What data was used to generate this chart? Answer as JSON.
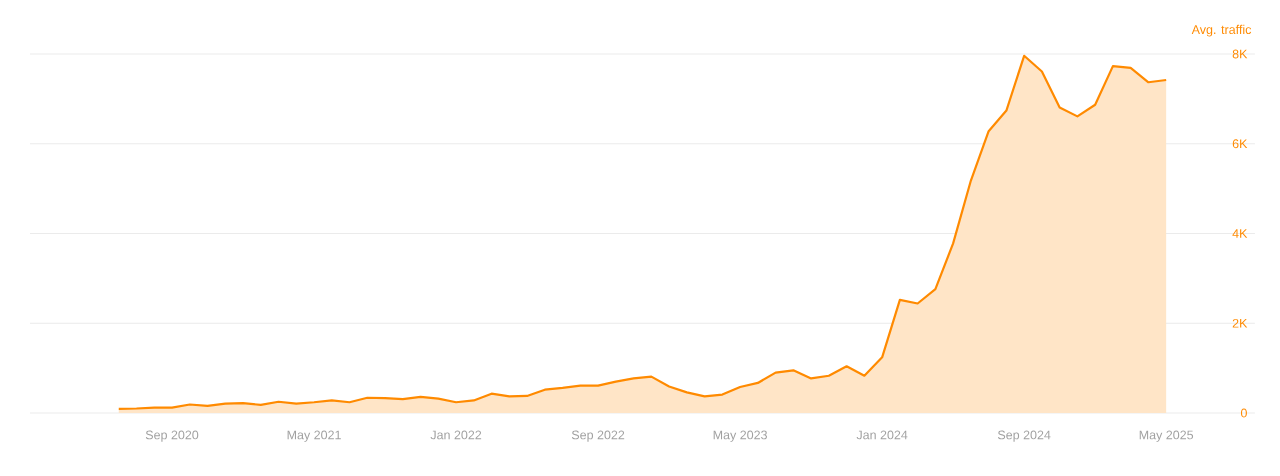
{
  "chart_data": {
    "type": "area",
    "ylabel": "Avg. traffic",
    "x": [
      "2020-06",
      "2020-07",
      "2020-08",
      "2020-09",
      "2020-10",
      "2020-11",
      "2020-12",
      "2021-01",
      "2021-02",
      "2021-03",
      "2021-04",
      "2021-05",
      "2021-06",
      "2021-07",
      "2021-08",
      "2021-09",
      "2021-10",
      "2021-11",
      "2021-12",
      "2022-01",
      "2022-02",
      "2022-03",
      "2022-04",
      "2022-05",
      "2022-06",
      "2022-07",
      "2022-08",
      "2022-09",
      "2022-10",
      "2022-11",
      "2022-12",
      "2023-01",
      "2023-02",
      "2023-03",
      "2023-04",
      "2023-05",
      "2023-06",
      "2023-07",
      "2023-08",
      "2023-09",
      "2023-10",
      "2023-11",
      "2023-12",
      "2024-01",
      "2024-02",
      "2024-03",
      "2024-04",
      "2024-05",
      "2024-06",
      "2024-07",
      "2024-08",
      "2024-09",
      "2024-10",
      "2024-11",
      "2024-12",
      "2025-01",
      "2025-02",
      "2025-03",
      "2025-04",
      "2025-05"
    ],
    "series": [
      {
        "color": "#ff8a00",
        "values": [
          90,
          100,
          120,
          120,
          190,
          160,
          210,
          220,
          180,
          250,
          210,
          240,
          280,
          240,
          340,
          330,
          310,
          360,
          320,
          240,
          280,
          430,
          370,
          380,
          520,
          560,
          610,
          610,
          700,
          770,
          810,
          590,
          460,
          370,
          410,
          580,
          670,
          900,
          950,
          770,
          830,
          1040,
          830,
          1240,
          2520,
          2440,
          2760,
          3780,
          5180,
          6280,
          6740,
          7960,
          7610,
          6810,
          6610,
          6870,
          7730,
          7690,
          7370,
          7420
        ]
      }
    ],
    "xlim": [
      "2020-01",
      "2025-10"
    ],
    "xticks": [
      {
        "value": "2020-09",
        "label": "Sep 2020"
      },
      {
        "value": "2021-05",
        "label": "May 2021"
      },
      {
        "value": "2022-01",
        "label": "Jan 2022"
      },
      {
        "value": "2022-09",
        "label": "Sep 2022"
      },
      {
        "value": "2023-05",
        "label": "May 2023"
      },
      {
        "value": "2024-01",
        "label": "Jan 2024"
      },
      {
        "value": "2024-09",
        "label": "Sep 2024"
      },
      {
        "value": "2025-05",
        "label": "May 2025"
      }
    ],
    "ylim": [
      0,
      8000
    ],
    "yticks": [
      0,
      {
        "value": 2000,
        "label": "2K"
      },
      {
        "value": 4000,
        "label": "4K"
      },
      {
        "value": 6000,
        "label": "6K"
      },
      {
        "value": 8000,
        "label": "8K"
      }
    ],
    "grid": "y",
    "marker": "none",
    "line_style": "solid"
  }
}
